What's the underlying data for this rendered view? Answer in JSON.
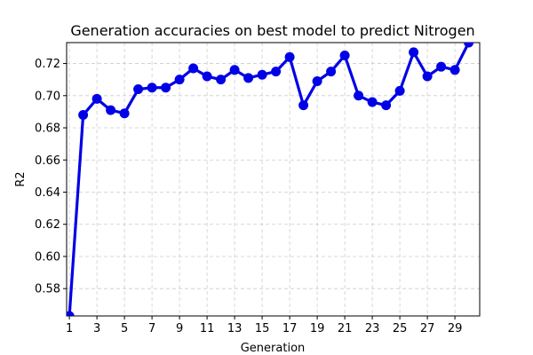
{
  "chart_data": {
    "type": "line",
    "title": "Generation accuracies on best model to predict Nitrogen",
    "xlabel": "Generation",
    "ylabel": "R2",
    "xlim": [
      0.8,
      30.8
    ],
    "ylim": [
      0.563,
      0.733
    ],
    "xticks": [
      1,
      3,
      5,
      7,
      9,
      11,
      13,
      15,
      17,
      19,
      21,
      23,
      25,
      27,
      29
    ],
    "yticks": [
      0.58,
      0.6,
      0.62,
      0.64,
      0.66,
      0.68,
      0.7,
      0.72
    ],
    "ytick_labels": [
      "0.58",
      "0.60",
      "0.62",
      "0.64",
      "0.66",
      "0.68",
      "0.70",
      "0.72"
    ],
    "grid": true,
    "series": [
      {
        "color": "#0000e6",
        "x": [
          1,
          2,
          3,
          4,
          5,
          6,
          7,
          8,
          9,
          10,
          11,
          12,
          13,
          14,
          15,
          16,
          17,
          18,
          19,
          20,
          21,
          22,
          23,
          24,
          25,
          26,
          27,
          28,
          29,
          30
        ],
        "y": [
          0.563,
          0.688,
          0.698,
          0.691,
          0.689,
          0.704,
          0.705,
          0.705,
          0.71,
          0.717,
          0.712,
          0.71,
          0.716,
          0.711,
          0.713,
          0.715,
          0.724,
          0.694,
          0.709,
          0.715,
          0.725,
          0.7,
          0.696,
          0.694,
          0.703,
          0.727,
          0.712,
          0.718,
          0.716,
          0.733
        ]
      }
    ]
  }
}
